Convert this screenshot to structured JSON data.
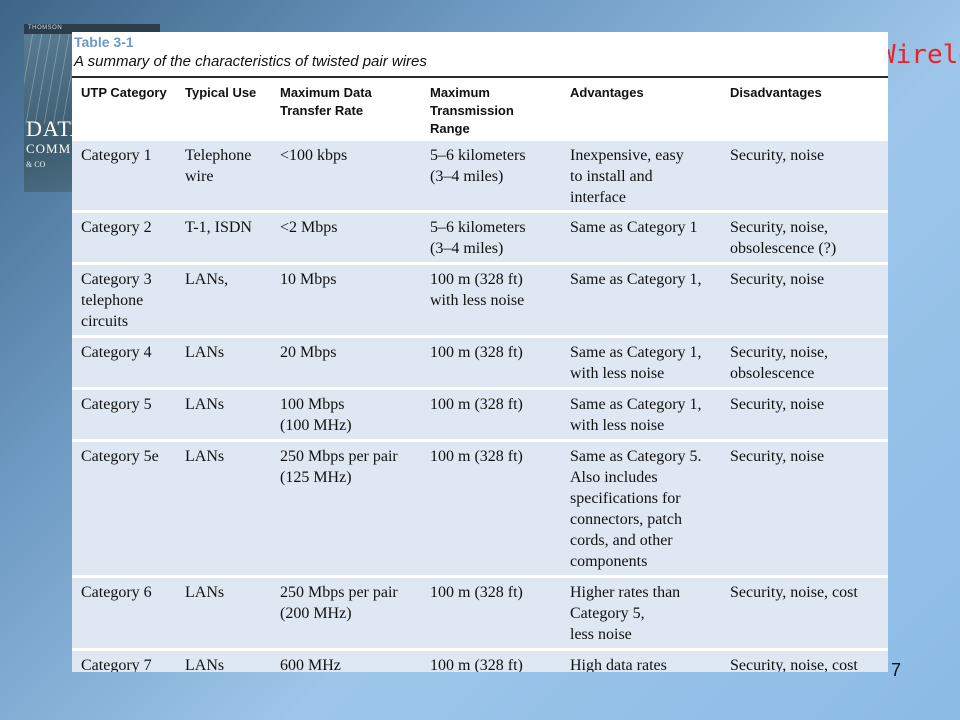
{
  "book_cover": {
    "line1": "DATA",
    "line2": "COMM",
    "line3": "& CO",
    "publisher": "THOMSON"
  },
  "slide_title_fragment": "Wirele",
  "page_number": "7",
  "table": {
    "label": "Table 3-1",
    "caption": "A summary of the characteristics of twisted pair wires",
    "headers": [
      "UTP Category",
      "Typical Use",
      "Maximum Data\nTransfer Rate",
      "Maximum\nTransmission Range",
      "Advantages",
      "Disadvantages"
    ],
    "rows": [
      [
        "Category 1",
        "Telephone\nwire",
        "<100 kbps",
        "5–6 kilometers\n(3–4 miles)",
        "Inexpensive, easy\nto install and\ninterface",
        "Security, noise"
      ],
      [
        "Category 2",
        "T-1, ISDN",
        "<2 Mbps",
        "5–6 kilometers\n(3–4 miles)",
        "Same as Category 1",
        "Security, noise,\nobsolescence (?)"
      ],
      [
        "Category 3\ntelephone\ncircuits",
        "LANs,",
        "10 Mbps",
        "100 m (328 ft)\nwith less noise",
        "Same as Category 1,",
        "Security, noise"
      ],
      [
        "Category 4",
        "LANs",
        "20 Mbps",
        "100 m (328 ft)",
        "Same as Category 1,\nwith less noise",
        "Security, noise,\nobsolescence"
      ],
      [
        "Category 5",
        "LANs",
        "100 Mbps\n(100 MHz)",
        "100 m (328 ft)",
        "Same as Category 1,\nwith less noise",
        "Security, noise"
      ],
      [
        "Category 5e",
        "LANs",
        "250 Mbps per pair\n(125 MHz)",
        "100 m (328 ft)",
        "Same as Category 5.\nAlso includes\nspecifications for\nconnectors, patch\ncords, and other\ncomponents",
        "Security, noise"
      ],
      [
        "Category 6",
        "LANs",
        "250 Mbps per pair\n(200 MHz)",
        "100 m (328 ft)",
        "Higher rates than\nCategory 5,\nless noise",
        "Security, noise, cost"
      ],
      [
        "Category 7",
        "LANs",
        "600 MHz",
        "100 m (328 ft)",
        "High data rates",
        "Security, noise, cost"
      ]
    ]
  }
}
